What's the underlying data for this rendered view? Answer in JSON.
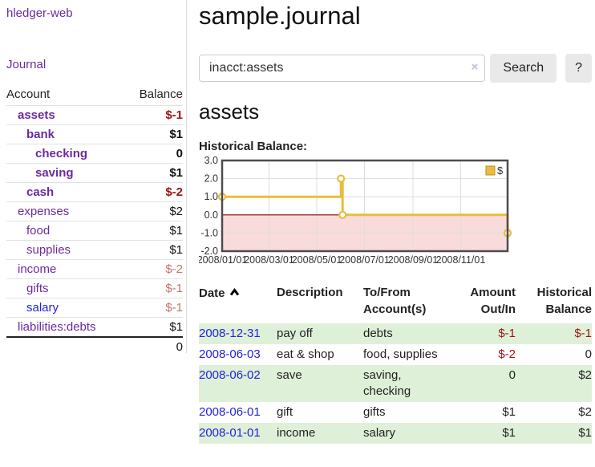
{
  "app": {
    "brand": "hledger-web",
    "nav_journal": "Journal"
  },
  "sidebar": {
    "account_header": "Account",
    "balance_header": "Balance",
    "rows": [
      {
        "account": "assets",
        "balance": "$-1"
      },
      {
        "account": "bank",
        "balance": "$1"
      },
      {
        "account": "checking",
        "balance": "0"
      },
      {
        "account": "saving",
        "balance": "$1"
      },
      {
        "account": "cash",
        "balance": "$-2"
      },
      {
        "account": "expenses",
        "balance": "$2"
      },
      {
        "account": "food",
        "balance": "$1"
      },
      {
        "account": "supplies",
        "balance": "$1"
      },
      {
        "account": "income",
        "balance": "$-2"
      },
      {
        "account": "gifts",
        "balance": "$-1"
      },
      {
        "account": "salary",
        "balance": "$-1"
      },
      {
        "account": "liabilities:debts",
        "balance": "$1"
      }
    ],
    "total": "0"
  },
  "main": {
    "title": "sample.journal",
    "search": {
      "value": "inacct:assets",
      "clear_icon": "×",
      "button_label": "Search",
      "help_label": "?"
    },
    "account_heading": "assets",
    "chart_label": "Historical Balance:",
    "chart_data": {
      "type": "line",
      "step": true,
      "series": [
        {
          "name": "$",
          "points": [
            [
              "2008-01-01",
              1
            ],
            [
              "2008-06-01",
              2
            ],
            [
              "2008-06-03",
              0
            ],
            [
              "2008-12-31",
              -1
            ]
          ]
        }
      ],
      "xrange": [
        "2008-01-01",
        "2008-12-31"
      ],
      "ylim": [
        -2,
        3
      ],
      "yticks": [
        "3.0",
        "2.0",
        "1.0",
        "0.0",
        "-1.0",
        "-2.0"
      ],
      "xticks": [
        "2008/01/01",
        "2008/03/01",
        "2008/05/01",
        "2008/07/01",
        "2008/09/01",
        "2008/11/01"
      ],
      "legend": "$",
      "legend_position": "top-right",
      "grid": true,
      "line_color": "#e9bc3f",
      "legend_border_color": "#b8922a",
      "negative_region_color": "#fadbdb",
      "zero_line_color": "#8b0000",
      "grid_color": "#dddddd",
      "border_color": "#4d4d4d"
    },
    "register": {
      "headers": {
        "date": "Date",
        "sort": "ascending",
        "description": "Description",
        "accounts": "To/From Account(s)",
        "amount": "Amount Out/In",
        "balance": "Historical Balance"
      },
      "rows": [
        {
          "date": "2008-12-31",
          "description": "pay off",
          "accounts": "debts",
          "amount": "$-1",
          "balance": "$-1"
        },
        {
          "date": "2008-06-03",
          "description": "eat & shop",
          "accounts": "food, supplies",
          "amount": "$-2",
          "balance": "0"
        },
        {
          "date": "2008-06-02",
          "description": "save",
          "accounts": "saving, checking",
          "amount": "0",
          "balance": "$2"
        },
        {
          "date": "2008-06-01",
          "description": "gift",
          "accounts": "gifts",
          "amount": "$1",
          "balance": "$2"
        },
        {
          "date": "2008-01-01",
          "description": "income",
          "accounts": "salary",
          "amount": "$1",
          "balance": "$1"
        }
      ]
    }
  }
}
